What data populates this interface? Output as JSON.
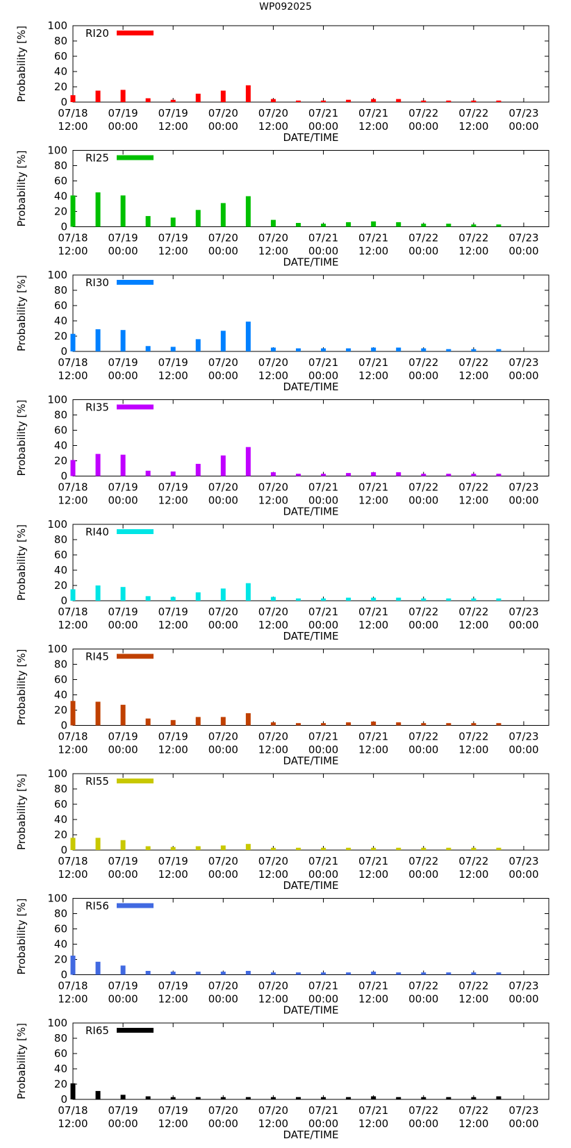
{
  "title": "WP092025",
  "chart_data": [
    {
      "type": "bar",
      "name": "RI20",
      "color": "#ff0000",
      "ylabel": "Probability [%]",
      "xlabel": "DATE/TIME",
      "ylim": [
        0,
        100
      ],
      "yticks": [
        0,
        20,
        40,
        60,
        80,
        100
      ],
      "x_tick_labels": [
        [
          "07/18",
          "12:00"
        ],
        [
          "07/19",
          "00:00"
        ],
        [
          "07/19",
          "12:00"
        ],
        [
          "07/20",
          "00:00"
        ],
        [
          "07/20",
          "12:00"
        ],
        [
          "07/21",
          "00:00"
        ],
        [
          "07/21",
          "12:00"
        ],
        [
          "07/22",
          "00:00"
        ],
        [
          "07/22",
          "12:00"
        ],
        [
          "07/23",
          "00:00"
        ]
      ],
      "x_hours": [
        0,
        6,
        12,
        18,
        24,
        30,
        36,
        42,
        48,
        54,
        60,
        66,
        72,
        78,
        84,
        90,
        96,
        102
      ],
      "values": [
        9,
        15,
        16,
        5,
        3,
        11,
        15,
        22,
        4,
        2,
        2,
        3,
        4,
        4,
        2,
        2,
        2,
        2
      ]
    },
    {
      "type": "bar",
      "name": "RI25",
      "color": "#00c000",
      "ylabel": "Probability [%]",
      "xlabel": "DATE/TIME",
      "ylim": [
        0,
        100
      ],
      "yticks": [
        0,
        20,
        40,
        60,
        80,
        100
      ],
      "x_tick_labels": [
        [
          "07/18",
          "12:00"
        ],
        [
          "07/19",
          "00:00"
        ],
        [
          "07/19",
          "12:00"
        ],
        [
          "07/20",
          "00:00"
        ],
        [
          "07/20",
          "12:00"
        ],
        [
          "07/21",
          "00:00"
        ],
        [
          "07/21",
          "12:00"
        ],
        [
          "07/22",
          "00:00"
        ],
        [
          "07/22",
          "12:00"
        ],
        [
          "07/23",
          "00:00"
        ]
      ],
      "x_hours": [
        0,
        6,
        12,
        18,
        24,
        30,
        36,
        42,
        48,
        54,
        60,
        66,
        72,
        78,
        84,
        90,
        96,
        102
      ],
      "values": [
        41,
        45,
        41,
        14,
        12,
        22,
        31,
        40,
        9,
        5,
        4,
        6,
        7,
        6,
        4,
        4,
        3,
        3
      ]
    },
    {
      "type": "bar",
      "name": "RI30",
      "color": "#0080ff",
      "ylabel": "Probability [%]",
      "xlabel": "DATE/TIME",
      "ylim": [
        0,
        100
      ],
      "yticks": [
        0,
        20,
        40,
        60,
        80,
        100
      ],
      "x_tick_labels": [
        [
          "07/18",
          "12:00"
        ],
        [
          "07/19",
          "00:00"
        ],
        [
          "07/19",
          "12:00"
        ],
        [
          "07/20",
          "00:00"
        ],
        [
          "07/20",
          "12:00"
        ],
        [
          "07/21",
          "00:00"
        ],
        [
          "07/21",
          "12:00"
        ],
        [
          "07/22",
          "00:00"
        ],
        [
          "07/22",
          "12:00"
        ],
        [
          "07/23",
          "00:00"
        ]
      ],
      "x_hours": [
        0,
        6,
        12,
        18,
        24,
        30,
        36,
        42,
        48,
        54,
        60,
        66,
        72,
        78,
        84,
        90,
        96,
        102
      ],
      "values": [
        23,
        29,
        28,
        7,
        6,
        16,
        27,
        39,
        5,
        4,
        4,
        4,
        5,
        5,
        4,
        3,
        3,
        3
      ]
    },
    {
      "type": "bar",
      "name": "RI35",
      "color": "#c000ff",
      "ylabel": "Probability [%]",
      "xlabel": "DATE/TIME",
      "ylim": [
        0,
        100
      ],
      "yticks": [
        0,
        20,
        40,
        60,
        80,
        100
      ],
      "x_tick_labels": [
        [
          "07/18",
          "12:00"
        ],
        [
          "07/19",
          "00:00"
        ],
        [
          "07/19",
          "12:00"
        ],
        [
          "07/20",
          "00:00"
        ],
        [
          "07/20",
          "12:00"
        ],
        [
          "07/21",
          "00:00"
        ],
        [
          "07/21",
          "12:00"
        ],
        [
          "07/22",
          "00:00"
        ],
        [
          "07/22",
          "12:00"
        ],
        [
          "07/23",
          "00:00"
        ]
      ],
      "x_hours": [
        0,
        6,
        12,
        18,
        24,
        30,
        36,
        42,
        48,
        54,
        60,
        66,
        72,
        78,
        84,
        90,
        96,
        102
      ],
      "values": [
        21,
        29,
        28,
        7,
        6,
        16,
        27,
        38,
        5,
        3,
        3,
        4,
        5,
        5,
        3,
        3,
        3,
        3
      ]
    },
    {
      "type": "bar",
      "name": "RI40",
      "color": "#00e5e5",
      "ylabel": "Probability [%]",
      "xlabel": "DATE/TIME",
      "ylim": [
        0,
        100
      ],
      "yticks": [
        0,
        20,
        40,
        60,
        80,
        100
      ],
      "x_tick_labels": [
        [
          "07/18",
          "12:00"
        ],
        [
          "07/19",
          "00:00"
        ],
        [
          "07/19",
          "12:00"
        ],
        [
          "07/20",
          "00:00"
        ],
        [
          "07/20",
          "12:00"
        ],
        [
          "07/21",
          "00:00"
        ],
        [
          "07/21",
          "12:00"
        ],
        [
          "07/22",
          "00:00"
        ],
        [
          "07/22",
          "12:00"
        ],
        [
          "07/23",
          "00:00"
        ]
      ],
      "x_hours": [
        0,
        6,
        12,
        18,
        24,
        30,
        36,
        42,
        48,
        54,
        60,
        66,
        72,
        78,
        84,
        90,
        96,
        102
      ],
      "values": [
        15,
        20,
        18,
        6,
        5,
        11,
        16,
        23,
        5,
        3,
        3,
        4,
        4,
        4,
        3,
        3,
        3,
        3
      ]
    },
    {
      "type": "bar",
      "name": "RI45",
      "color": "#c04000",
      "ylabel": "Probability [%]",
      "xlabel": "DATE/TIME",
      "ylim": [
        0,
        100
      ],
      "yticks": [
        0,
        20,
        40,
        60,
        80,
        100
      ],
      "x_tick_labels": [
        [
          "07/18",
          "12:00"
        ],
        [
          "07/19",
          "00:00"
        ],
        [
          "07/19",
          "12:00"
        ],
        [
          "07/20",
          "00:00"
        ],
        [
          "07/20",
          "12:00"
        ],
        [
          "07/21",
          "00:00"
        ],
        [
          "07/21",
          "12:00"
        ],
        [
          "07/22",
          "00:00"
        ],
        [
          "07/22",
          "12:00"
        ],
        [
          "07/23",
          "00:00"
        ]
      ],
      "x_hours": [
        0,
        6,
        12,
        18,
        24,
        30,
        36,
        42,
        48,
        54,
        60,
        66,
        72,
        78,
        84,
        90,
        96,
        102
      ],
      "values": [
        32,
        31,
        27,
        9,
        7,
        11,
        11,
        16,
        4,
        3,
        3,
        4,
        5,
        4,
        3,
        3,
        3,
        3
      ]
    },
    {
      "type": "bar",
      "name": "RI55",
      "color": "#c8c800",
      "ylabel": "Probability [%]",
      "xlabel": "DATE/TIME",
      "ylim": [
        0,
        100
      ],
      "yticks": [
        0,
        20,
        40,
        60,
        80,
        100
      ],
      "x_tick_labels": [
        [
          "07/18",
          "12:00"
        ],
        [
          "07/19",
          "00:00"
        ],
        [
          "07/19",
          "12:00"
        ],
        [
          "07/20",
          "00:00"
        ],
        [
          "07/20",
          "12:00"
        ],
        [
          "07/21",
          "00:00"
        ],
        [
          "07/21",
          "12:00"
        ],
        [
          "07/22",
          "00:00"
        ],
        [
          "07/22",
          "12:00"
        ],
        [
          "07/23",
          "00:00"
        ]
      ],
      "x_hours": [
        0,
        6,
        12,
        18,
        24,
        30,
        36,
        42,
        48,
        54,
        60,
        66,
        72,
        78,
        84,
        90,
        96,
        102
      ],
      "values": [
        16,
        16,
        13,
        5,
        4,
        5,
        6,
        8,
        3,
        3,
        3,
        3,
        3,
        3,
        3,
        3,
        3,
        3
      ]
    },
    {
      "type": "bar",
      "name": "RI56",
      "color": "#4169e1",
      "ylabel": "Probability [%]",
      "xlabel": "DATE/TIME",
      "ylim": [
        0,
        100
      ],
      "yticks": [
        0,
        20,
        40,
        60,
        80,
        100
      ],
      "x_tick_labels": [
        [
          "07/18",
          "12:00"
        ],
        [
          "07/19",
          "00:00"
        ],
        [
          "07/19",
          "12:00"
        ],
        [
          "07/20",
          "00:00"
        ],
        [
          "07/20",
          "12:00"
        ],
        [
          "07/21",
          "00:00"
        ],
        [
          "07/21",
          "12:00"
        ],
        [
          "07/22",
          "00:00"
        ],
        [
          "07/22",
          "12:00"
        ],
        [
          "07/23",
          "00:00"
        ]
      ],
      "x_hours": [
        0,
        6,
        12,
        18,
        24,
        30,
        36,
        42,
        48,
        54,
        60,
        66,
        72,
        78,
        84,
        90,
        96,
        102
      ],
      "values": [
        25,
        17,
        12,
        5,
        4,
        4,
        4,
        5,
        3,
        3,
        3,
        3,
        4,
        3,
        3,
        3,
        3,
        3
      ]
    },
    {
      "type": "bar",
      "name": "RI65",
      "color": "#000000",
      "ylabel": "Probability [%]",
      "xlabel": "DATE/TIME",
      "ylim": [
        0,
        100
      ],
      "yticks": [
        0,
        20,
        40,
        60,
        80,
        100
      ],
      "x_tick_labels": [
        [
          "07/18",
          "12:00"
        ],
        [
          "07/19",
          "00:00"
        ],
        [
          "07/19",
          "12:00"
        ],
        [
          "07/20",
          "00:00"
        ],
        [
          "07/20",
          "12:00"
        ],
        [
          "07/21",
          "00:00"
        ],
        [
          "07/21",
          "12:00"
        ],
        [
          "07/22",
          "00:00"
        ],
        [
          "07/22",
          "12:00"
        ],
        [
          "07/23",
          "00:00"
        ]
      ],
      "x_hours": [
        0,
        6,
        12,
        18,
        24,
        30,
        36,
        42,
        48,
        54,
        60,
        66,
        72,
        78,
        84,
        90,
        96,
        102
      ],
      "values": [
        21,
        11,
        6,
        4,
        3,
        3,
        3,
        3,
        3,
        3,
        3,
        3,
        4,
        3,
        3,
        3,
        3,
        4
      ]
    }
  ]
}
